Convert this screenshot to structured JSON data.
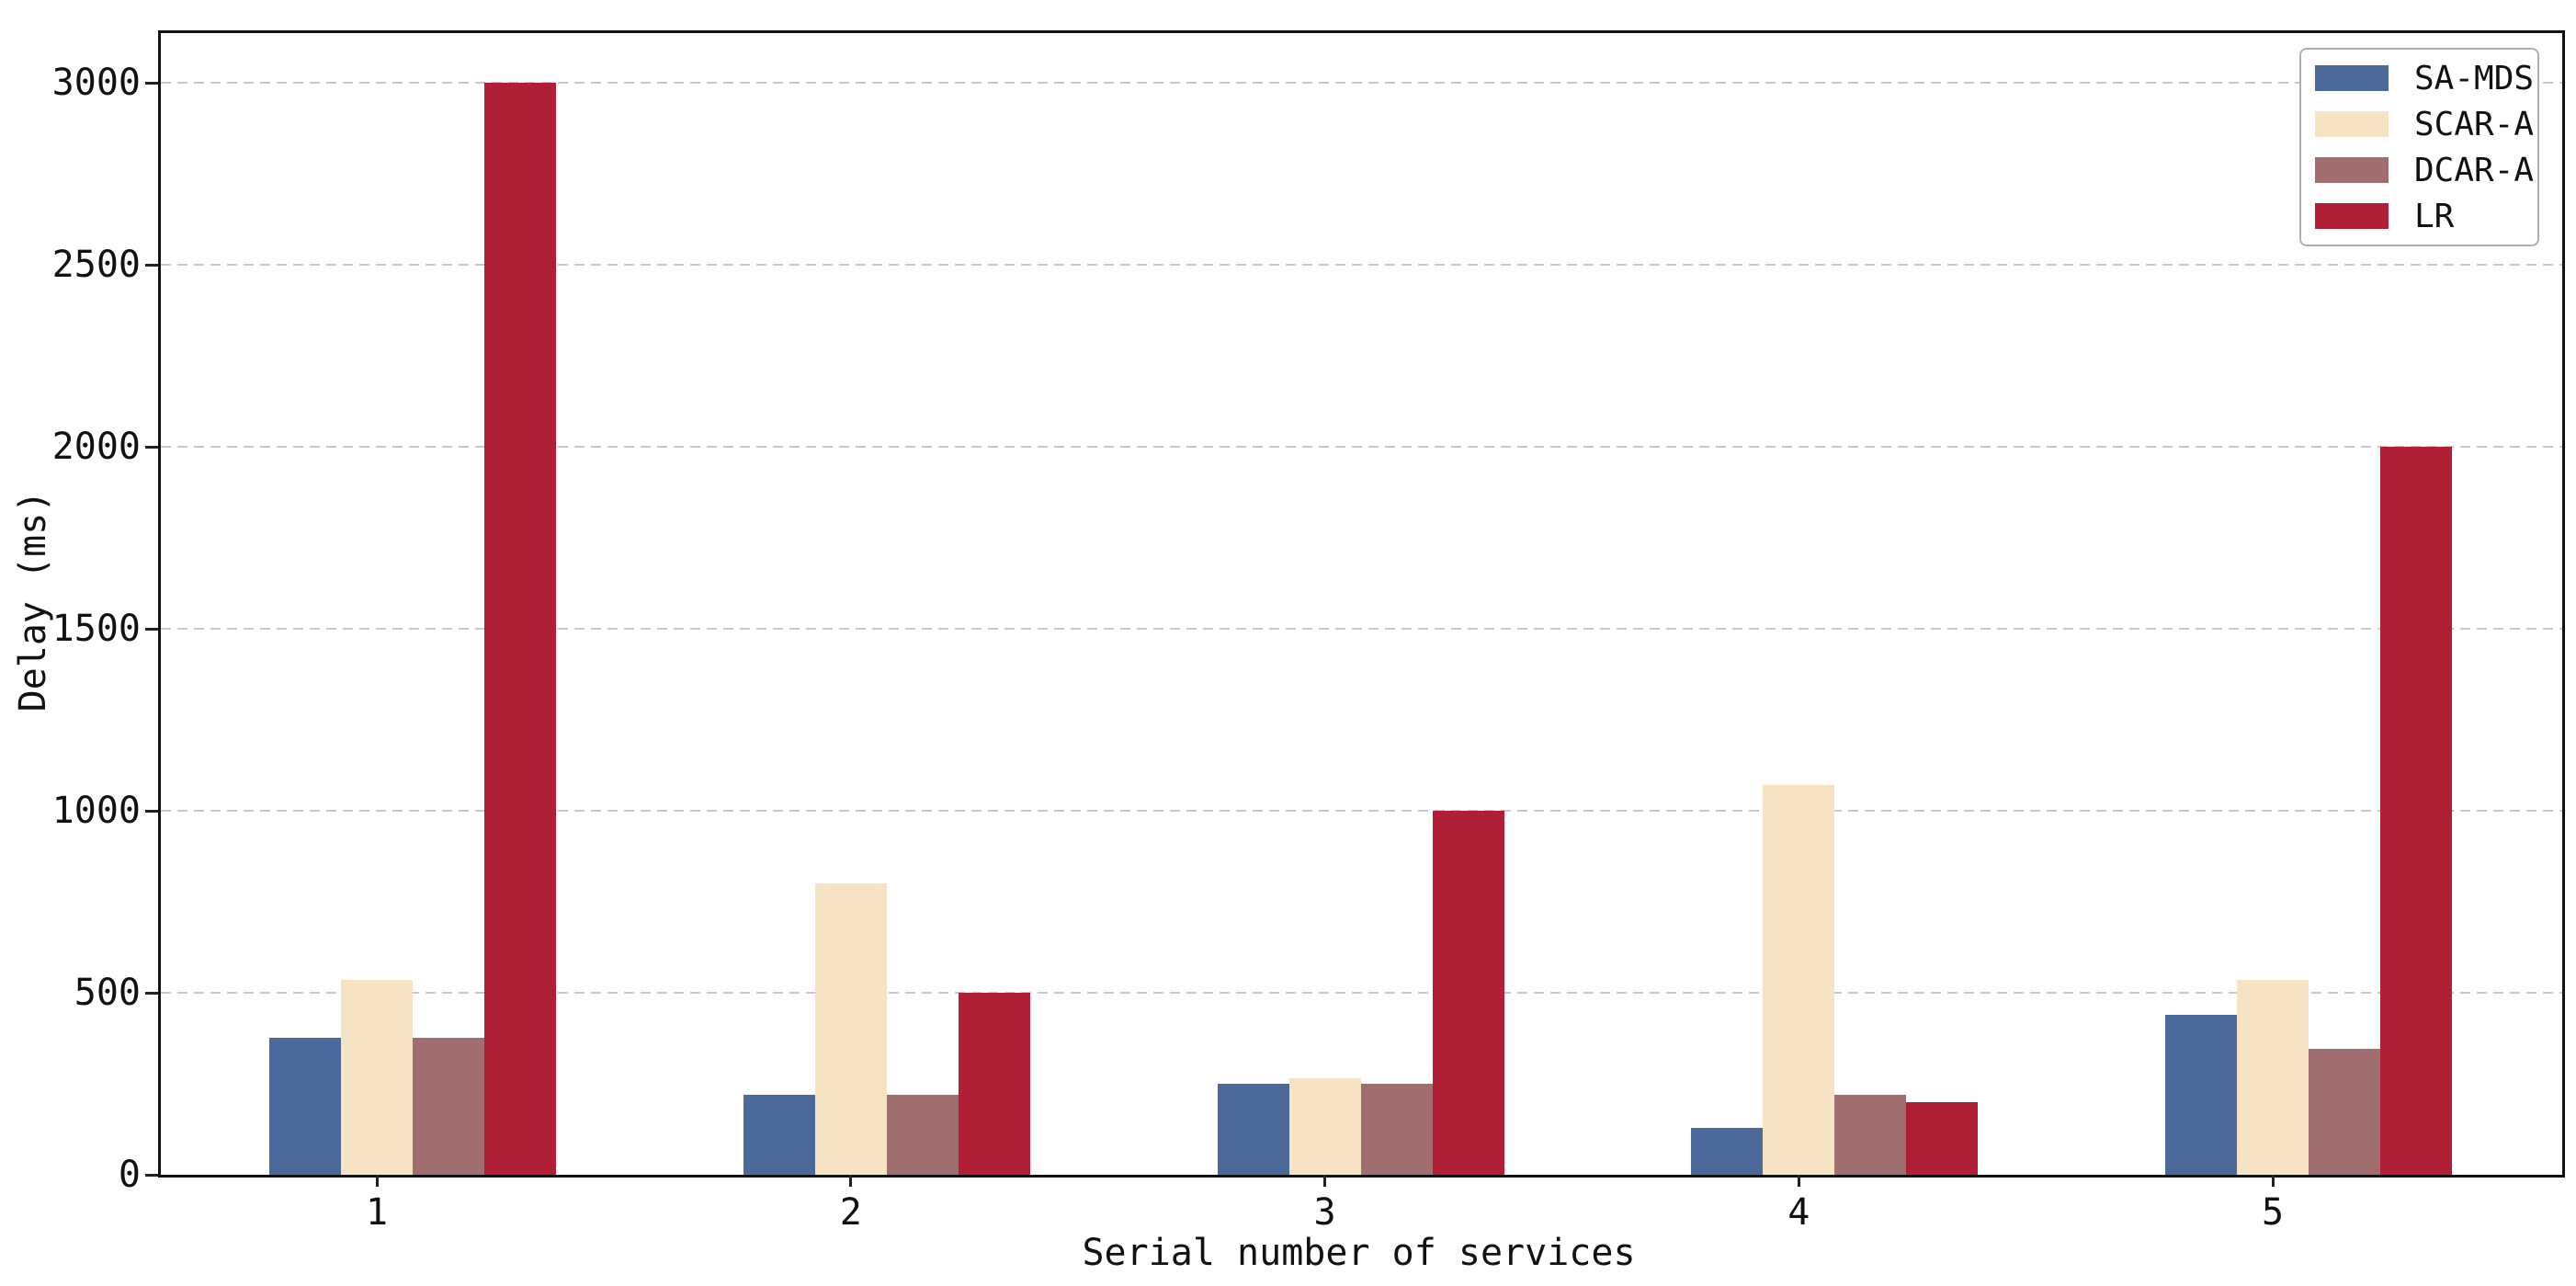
{
  "chart_data": {
    "type": "bar",
    "title": "",
    "xlabel": "Serial number of services",
    "ylabel": "Delay (ms)",
    "categories": [
      "1",
      "2",
      "3",
      "4",
      "5"
    ],
    "series": [
      {
        "name": "SA-MDS",
        "color": "#4b6a9b",
        "values": [
          375,
          220,
          250,
          130,
          440
        ]
      },
      {
        "name": "SCAR-A",
        "color": "#f5e3c3",
        "values": [
          535,
          800,
          265,
          1070,
          535
        ]
      },
      {
        "name": "DCAR-A",
        "color": "#a06e6e",
        "values": [
          375,
          220,
          250,
          220,
          345
        ]
      },
      {
        "name": "LR",
        "color": "#b01f35",
        "values": [
          3000,
          500,
          1000,
          200,
          2000
        ]
      }
    ],
    "yticks": [
      0,
      500,
      1000,
      1500,
      2000,
      2500,
      3000
    ],
    "ylim": [
      0,
      3136
    ],
    "grid": "horizontal-dashed",
    "legend_position": "top-right"
  },
  "colors": {
    "axis": "#111111",
    "grid": "#c9c9c9",
    "tick": "#222222",
    "legend_border": "#aeaeae",
    "background": "#ffffff",
    "text": "#111111"
  }
}
